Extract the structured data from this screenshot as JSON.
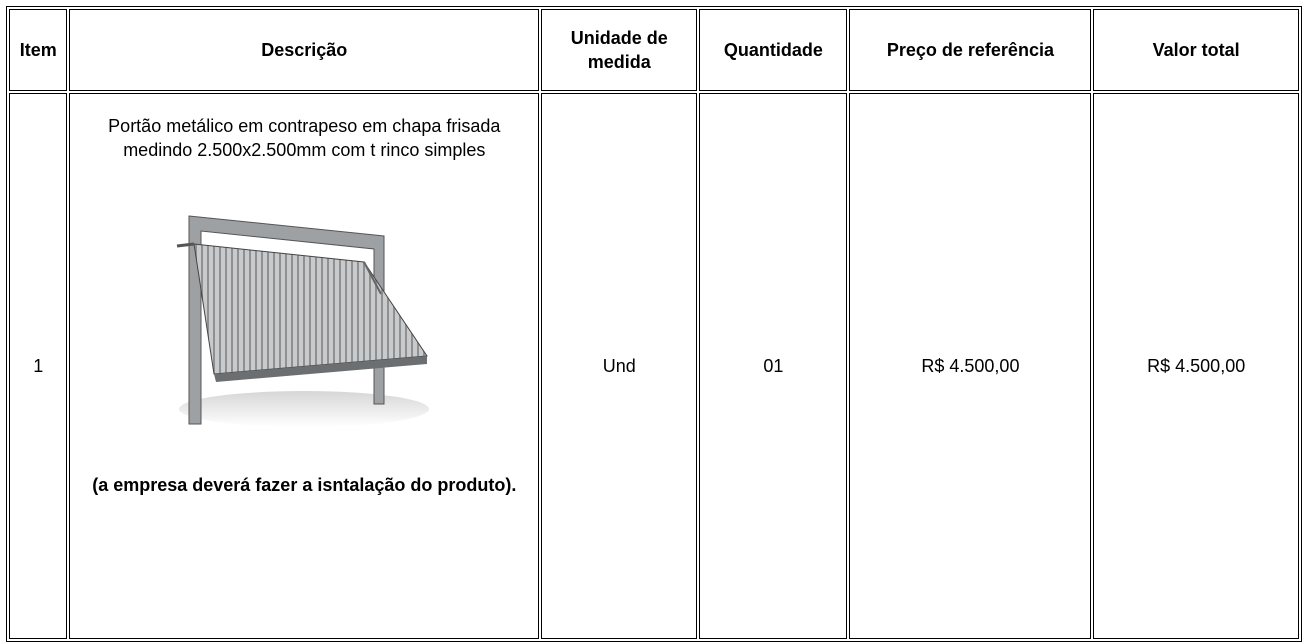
{
  "table": {
    "headers": [
      "Item",
      "Descrição",
      "Unidade de medida",
      "Quantidade",
      "Preço de referência",
      "Valor total"
    ],
    "rows": [
      {
        "item": "1",
        "description": "Portão metálico em contrapeso em chapa frisada medindo 2.500x2.500mm com t rinco simples",
        "note": "(a empresa deverá fazer a isntalação do produto).",
        "unit": "Und",
        "quantity": "01",
        "reference_price": "R$ 4.500,00",
        "total_value": "R$ 4.500,00"
      }
    ]
  }
}
